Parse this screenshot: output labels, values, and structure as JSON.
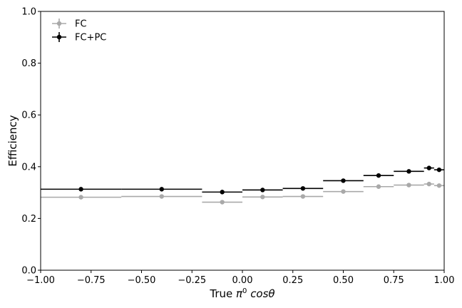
{
  "chart_data": {
    "type": "scatter",
    "xlabel_main": "True ",
    "xlabel_symbol": "π",
    "xlabel_sup": "0",
    "xlabel_tail": " cosθ",
    "ylabel": "Efficiency",
    "xlim": [
      -1.0,
      1.0
    ],
    "ylim": [
      0.0,
      1.0
    ],
    "xticks": [
      -1.0,
      -0.75,
      -0.5,
      -0.25,
      0.0,
      0.25,
      0.5,
      0.75,
      1.0
    ],
    "xtick_labels": [
      "−1.00",
      "−0.75",
      "−0.50",
      "−0.25",
      "0.00",
      "0.25",
      "0.50",
      "0.75",
      "1.00"
    ],
    "yticks": [
      0.0,
      0.2,
      0.4,
      0.6,
      0.8,
      1.0
    ],
    "ytick_labels": [
      "0.0",
      "0.2",
      "0.4",
      "0.6",
      "0.8",
      "1.0"
    ],
    "grid": false,
    "legend": "top-left",
    "bins": [
      [
        -1.0,
        -0.6
      ],
      [
        -0.6,
        -0.2
      ],
      [
        -0.2,
        0.0
      ],
      [
        0.0,
        0.2
      ],
      [
        0.2,
        0.4
      ],
      [
        0.4,
        0.6
      ],
      [
        0.6,
        0.75
      ],
      [
        0.75,
        0.9
      ],
      [
        0.9,
        0.95
      ],
      [
        0.95,
        1.0
      ]
    ],
    "x": [
      -0.8,
      -0.4,
      -0.1,
      0.1,
      0.3,
      0.5,
      0.675,
      0.825,
      0.925,
      0.975
    ],
    "series": [
      {
        "name": "FC",
        "color": "#a9a9a9",
        "values": [
          0.282,
          0.285,
          0.263,
          0.283,
          0.285,
          0.304,
          0.323,
          0.329,
          0.333,
          0.327
        ],
        "errors": [
          0.004,
          0.004,
          0.005,
          0.004,
          0.004,
          0.004,
          0.005,
          0.005,
          0.008,
          0.007
        ]
      },
      {
        "name": "FC+PC",
        "color": "#000000",
        "values": [
          0.313,
          0.313,
          0.302,
          0.31,
          0.316,
          0.346,
          0.366,
          0.382,
          0.395,
          0.388
        ],
        "errors": [
          0.004,
          0.004,
          0.005,
          0.004,
          0.004,
          0.004,
          0.005,
          0.005,
          0.008,
          0.007
        ]
      }
    ]
  }
}
